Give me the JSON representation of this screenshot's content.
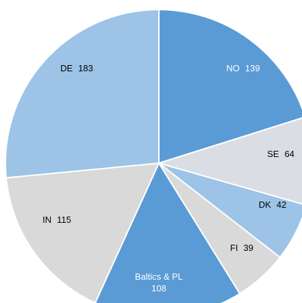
{
  "chart_data": {
    "type": "pie",
    "categories": [
      "NO",
      "SE",
      "DK",
      "FI",
      "Baltics & PL",
      "IN",
      "DE"
    ],
    "values": [
      139,
      64,
      42,
      39,
      108,
      115,
      183
    ],
    "colors": [
      "#5b9bd5",
      "#dadde3",
      "#9dc3e6",
      "#d9d9d9",
      "#5b9bd5",
      "#d9d9d9",
      "#9dc3e6"
    ]
  }
}
